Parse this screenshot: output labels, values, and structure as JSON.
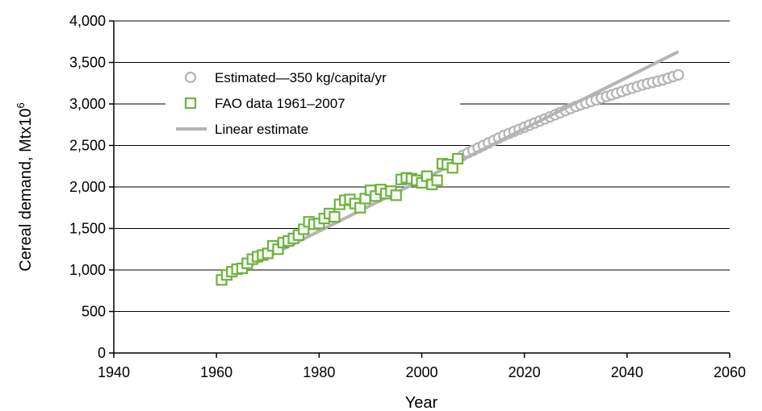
{
  "chart_data": {
    "type": "scatter",
    "xlabel": "Year",
    "ylabel": "Cereal demand, Mtx10",
    "ylabel_sup": "6",
    "xlim": [
      1940,
      2060
    ],
    "ylim": [
      0,
      4000
    ],
    "xticks": [
      1940,
      1960,
      1980,
      2000,
      2020,
      2040,
      2060
    ],
    "yticks": [
      0,
      500,
      1000,
      1500,
      2000,
      2500,
      3000,
      3500,
      4000
    ],
    "xtick_labels": [
      "1940",
      "1960",
      "1980",
      "2000",
      "2020",
      "2040",
      "2060"
    ],
    "ytick_labels": [
      "0",
      "500",
      "1,000",
      "1,500",
      "2,000",
      "2,500",
      "3,000",
      "3,500",
      "4,000"
    ],
    "grid": "horizontal",
    "legend_position": "top-left",
    "legend": [
      {
        "label": "Estimated—350 kg/capita/yr",
        "marker": "circle",
        "color": "#b4b4b4"
      },
      {
        "label": "FAO data 1961–2007",
        "marker": "square",
        "color": "#6db33f"
      },
      {
        "label": "Linear estimate",
        "marker": "line",
        "color": "#b4b4b4"
      }
    ],
    "series": [
      {
        "name": "Estimated—350 kg/capita/yr",
        "marker": "circle",
        "color": "#b4b4b4",
        "x": [
          2008,
          2009,
          2010,
          2011,
          2012,
          2013,
          2014,
          2015,
          2016,
          2017,
          2018,
          2019,
          2020,
          2021,
          2022,
          2023,
          2024,
          2025,
          2026,
          2027,
          2028,
          2029,
          2030,
          2031,
          2032,
          2033,
          2034,
          2035,
          2036,
          2037,
          2038,
          2039,
          2040,
          2041,
          2042,
          2043,
          2044,
          2045,
          2046,
          2047,
          2048,
          2049,
          2050
        ],
        "y": [
          2380,
          2410,
          2440,
          2470,
          2500,
          2530,
          2560,
          2590,
          2620,
          2645,
          2670,
          2695,
          2720,
          2745,
          2770,
          2795,
          2820,
          2845,
          2870,
          2895,
          2920,
          2945,
          2970,
          2990,
          3010,
          3030,
          3050,
          3070,
          3090,
          3110,
          3130,
          3150,
          3170,
          3190,
          3210,
          3230,
          3245,
          3260,
          3275,
          3290,
          3310,
          3330,
          3350
        ]
      },
      {
        "name": "FAO data 1961–2007",
        "marker": "square",
        "color": "#6db33f",
        "x": [
          1961,
          1962,
          1963,
          1964,
          1965,
          1966,
          1967,
          1968,
          1969,
          1970,
          1971,
          1972,
          1973,
          1974,
          1975,
          1976,
          1977,
          1978,
          1979,
          1980,
          1981,
          1982,
          1983,
          1984,
          1985,
          1986,
          1987,
          1988,
          1989,
          1990,
          1991,
          1992,
          1993,
          1994,
          1995,
          1996,
          1997,
          1998,
          1999,
          2000,
          2001,
          2002,
          2003,
          2004,
          2005,
          2006,
          2007
        ],
        "y": [
          880,
          940,
          980,
          1010,
          1020,
          1080,
          1130,
          1160,
          1180,
          1200,
          1290,
          1250,
          1330,
          1350,
          1380,
          1420,
          1490,
          1580,
          1550,
          1560,
          1620,
          1680,
          1640,
          1790,
          1840,
          1850,
          1800,
          1750,
          1860,
          1960,
          1890,
          1970,
          1920,
          1950,
          1900,
          2090,
          2110,
          2100,
          2080,
          2050,
          2130,
          2030,
          2080,
          2280,
          2270,
          2230,
          2340
        ]
      },
      {
        "name": "Linear estimate",
        "marker": "line",
        "color": "#b4b4b4",
        "x": [
          1961,
          2050
        ],
        "y": [
          880,
          3630
        ]
      }
    ]
  }
}
